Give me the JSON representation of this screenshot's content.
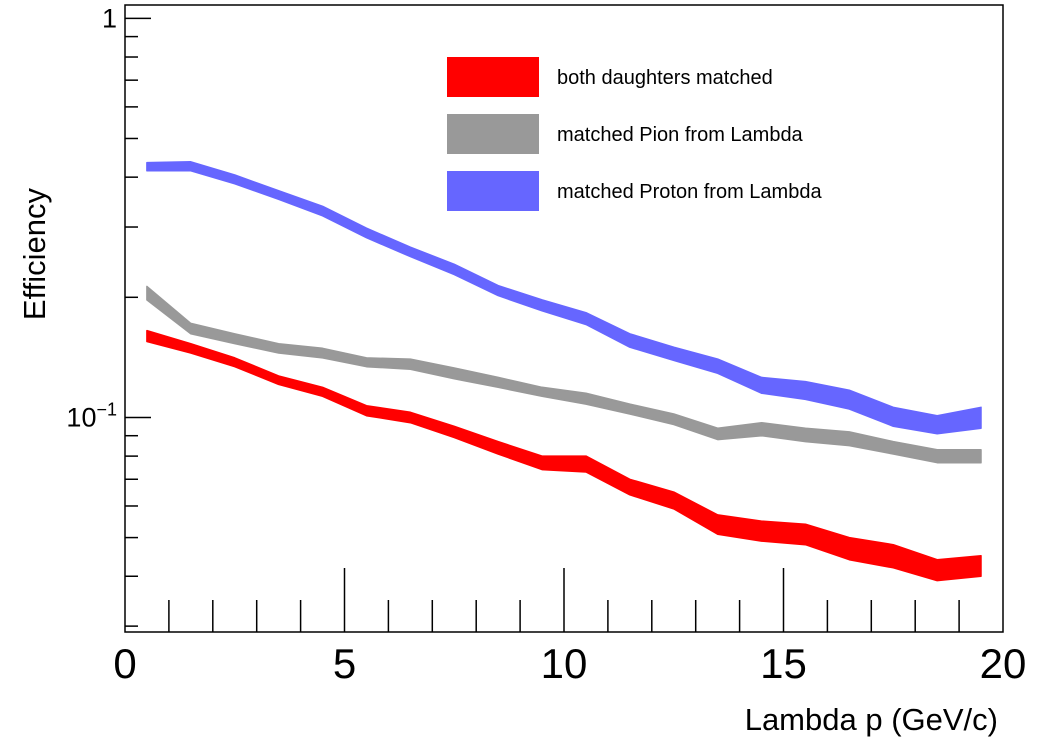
{
  "chart_data": {
    "type": "area",
    "title": "",
    "xlabel": "Lambda p (GeV/c)",
    "ylabel": "Efficiency",
    "x_ticks": [
      "0",
      "5",
      "10",
      "15",
      "20"
    ],
    "y_ticks": [
      {
        "value": 1,
        "base": "1",
        "exp": ""
      },
      {
        "value": 0.1,
        "base": "10",
        "exp": "−1"
      }
    ],
    "xlim": [
      0,
      20
    ],
    "ylim": [
      0.029,
      1.08
    ],
    "yscale": "log",
    "grid": false,
    "legend_position": "top-right",
    "x": [
      0.5,
      1.5,
      2.5,
      3.5,
      4.5,
      5.5,
      6.5,
      7.5,
      8.5,
      9.5,
      10.5,
      11.5,
      12.5,
      13.5,
      14.5,
      15.5,
      16.5,
      17.5,
      18.5,
      19.5
    ],
    "series": [
      {
        "name": "both daughters matched",
        "color": "#ff0000",
        "lower": [
          0.155,
          0.145,
          0.134,
          0.121,
          0.113,
          0.101,
          0.097,
          0.089,
          0.081,
          0.074,
          0.073,
          0.064,
          0.059,
          0.051,
          0.049,
          0.048,
          0.044,
          0.042,
          0.039,
          0.04
        ],
        "upper": [
          0.165,
          0.153,
          0.141,
          0.127,
          0.119,
          0.107,
          0.103,
          0.095,
          0.087,
          0.08,
          0.08,
          0.07,
          0.065,
          0.057,
          0.055,
          0.054,
          0.05,
          0.048,
          0.044,
          0.045
        ]
      },
      {
        "name": "matched Pion from Lambda",
        "color": "#999999",
        "lower": [
          0.197,
          0.162,
          0.153,
          0.145,
          0.141,
          0.134,
          0.132,
          0.125,
          0.119,
          0.113,
          0.108,
          0.102,
          0.096,
          0.088,
          0.09,
          0.087,
          0.085,
          0.081,
          0.077,
          0.077
        ],
        "upper": [
          0.213,
          0.172,
          0.162,
          0.153,
          0.149,
          0.141,
          0.14,
          0.133,
          0.126,
          0.119,
          0.115,
          0.108,
          0.102,
          0.094,
          0.097,
          0.094,
          0.092,
          0.087,
          0.083,
          0.083
        ]
      },
      {
        "name": "matched Proton from Lambda",
        "color": "#6666ff",
        "lower": [
          0.415,
          0.415,
          0.385,
          0.352,
          0.32,
          0.282,
          0.253,
          0.228,
          0.202,
          0.185,
          0.171,
          0.15,
          0.139,
          0.129,
          0.115,
          0.111,
          0.105,
          0.095,
          0.091,
          0.094
        ],
        "upper": [
          0.435,
          0.437,
          0.405,
          0.37,
          0.338,
          0.298,
          0.267,
          0.242,
          0.214,
          0.197,
          0.183,
          0.162,
          0.15,
          0.14,
          0.126,
          0.123,
          0.117,
          0.106,
          0.101,
          0.106
        ]
      }
    ]
  }
}
